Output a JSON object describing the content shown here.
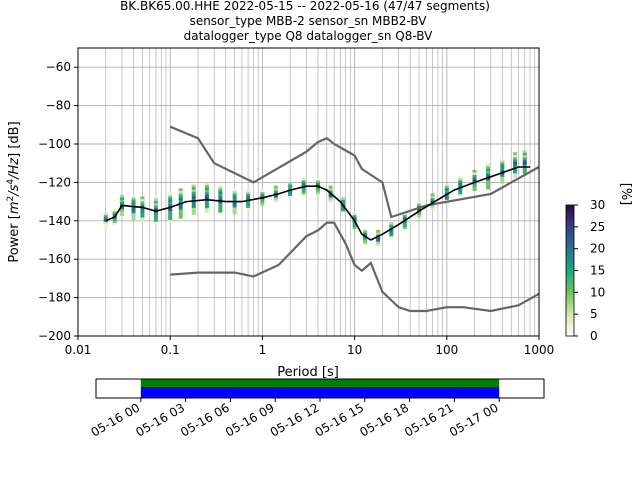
{
  "chart_data": {
    "type": "line",
    "title_lines": [
      "BK.BK65.00.HHE   2022-05-15 -- 2022-05-16  (47/47 segments)",
      "sensor_type MBB-2 sensor_sn MBB2-BV",
      "datalogger_type Q8 datalogger_sn Q8-BV"
    ],
    "xlabel": "Period [s]",
    "ylabel_prefix": "Power [",
    "ylabel_suffix": "] [dB]",
    "x_scale": "log",
    "xlim": [
      0.01,
      1000
    ],
    "ylim": [
      -200,
      -50
    ],
    "xticks": [
      {
        "value": 0.01,
        "label": "0.01"
      },
      {
        "value": 0.1,
        "label": "0.1"
      },
      {
        "value": 1,
        "label": "1"
      },
      {
        "value": 10,
        "label": "10"
      },
      {
        "value": 100,
        "label": "100"
      },
      {
        "value": 1000,
        "label": "1000"
      }
    ],
    "yticks": [
      {
        "value": -60,
        "label": "−60"
      },
      {
        "value": -80,
        "label": "−80"
      },
      {
        "value": -100,
        "label": "−100"
      },
      {
        "value": -120,
        "label": "−120"
      },
      {
        "value": -140,
        "label": "−140"
      },
      {
        "value": -160,
        "label": "−160"
      },
      {
        "value": -180,
        "label": "−180"
      },
      {
        "value": -200,
        "label": "−200"
      }
    ],
    "grid": true,
    "series": [
      {
        "color": "#666666",
        "points": [
          [
            0.1,
            -91
          ],
          [
            0.2,
            -97
          ],
          [
            0.3,
            -110
          ],
          [
            0.8,
            -120
          ],
          [
            3,
            -104
          ],
          [
            4,
            -99
          ],
          [
            5,
            -97
          ],
          [
            6,
            -100
          ],
          [
            10,
            -106
          ],
          [
            12,
            -113
          ],
          [
            20,
            -120
          ],
          [
            25,
            -138
          ],
          [
            60,
            -132
          ],
          [
            300,
            -126
          ],
          [
            1000,
            -112
          ]
        ]
      },
      {
        "color": "#666666",
        "points": [
          [
            0.1,
            -168
          ],
          [
            0.2,
            -167
          ],
          [
            0.5,
            -167
          ],
          [
            0.8,
            -169
          ],
          [
            1.5,
            -163
          ],
          [
            3,
            -148
          ],
          [
            4,
            -145
          ],
          [
            5,
            -141
          ],
          [
            6,
            -141
          ],
          [
            8,
            -152
          ],
          [
            10,
            -163
          ],
          [
            12,
            -166
          ],
          [
            15,
            -162
          ],
          [
            20,
            -177
          ],
          [
            30,
            -185
          ],
          [
            40,
            -187
          ],
          [
            60,
            -187
          ],
          [
            100,
            -185
          ],
          [
            150,
            -185
          ],
          [
            300,
            -187
          ],
          [
            600,
            -184
          ],
          [
            1000,
            -178
          ]
        ]
      },
      {
        "color": "#000000",
        "points": [
          [
            0.02,
            -140
          ],
          [
            0.025,
            -138
          ],
          [
            0.03,
            -132
          ],
          [
            0.05,
            -133
          ],
          [
            0.07,
            -135
          ],
          [
            0.1,
            -133
          ],
          [
            0.15,
            -130
          ],
          [
            0.25,
            -129
          ],
          [
            0.4,
            -130
          ],
          [
            0.6,
            -130
          ],
          [
            1,
            -128
          ],
          [
            1.5,
            -126
          ],
          [
            2,
            -124
          ],
          [
            3,
            -122
          ],
          [
            4,
            -122
          ],
          [
            5,
            -124
          ],
          [
            7,
            -130
          ],
          [
            10,
            -140
          ],
          [
            12,
            -147
          ],
          [
            15,
            -150
          ],
          [
            20,
            -147
          ],
          [
            30,
            -142
          ],
          [
            50,
            -135
          ],
          [
            80,
            -129
          ],
          [
            120,
            -124
          ],
          [
            200,
            -120
          ],
          [
            400,
            -115
          ],
          [
            600,
            -112
          ],
          [
            800,
            -112
          ]
        ]
      }
    ],
    "histogram_columns": [
      {
        "period": 0.02,
        "center": -140,
        "spread": 3
      },
      {
        "period": 0.025,
        "center": -138,
        "spread": 3
      },
      {
        "period": 0.03,
        "center": -132,
        "spread": 4
      },
      {
        "period": 0.04,
        "center": -133,
        "spread": 5
      },
      {
        "period": 0.05,
        "center": -134,
        "spread": 5
      },
      {
        "period": 0.07,
        "center": -135,
        "spread": 5
      },
      {
        "period": 0.1,
        "center": -133,
        "spread": 6
      },
      {
        "period": 0.13,
        "center": -131,
        "spread": 6
      },
      {
        "period": 0.18,
        "center": -129,
        "spread": 6
      },
      {
        "period": 0.25,
        "center": -128,
        "spread": 6
      },
      {
        "period": 0.35,
        "center": -129,
        "spread": 6
      },
      {
        "period": 0.5,
        "center": -130,
        "spread": 5
      },
      {
        "period": 0.7,
        "center": -129,
        "spread": 4
      },
      {
        "period": 1.0,
        "center": -128,
        "spread": 3
      },
      {
        "period": 1.4,
        "center": -126,
        "spread": 3
      },
      {
        "period": 2.0,
        "center": -124,
        "spread": 3
      },
      {
        "period": 2.8,
        "center": -122,
        "spread": 3
      },
      {
        "period": 4.0,
        "center": -122,
        "spread": 3
      },
      {
        "period": 5.5,
        "center": -126,
        "spread": 3
      },
      {
        "period": 7.5,
        "center": -132,
        "spread": 3
      },
      {
        "period": 10,
        "center": -140,
        "spread": 3
      },
      {
        "period": 13,
        "center": -148,
        "spread": 3
      },
      {
        "period": 18,
        "center": -149,
        "spread": 3
      },
      {
        "period": 25,
        "center": -145,
        "spread": 3
      },
      {
        "period": 35,
        "center": -140,
        "spread": 3
      },
      {
        "period": 50,
        "center": -134,
        "spread": 3
      },
      {
        "period": 70,
        "center": -130,
        "spread": 3
      },
      {
        "period": 100,
        "center": -126,
        "spread": 4
      },
      {
        "period": 140,
        "center": -122,
        "spread": 4
      },
      {
        "period": 200,
        "center": -119,
        "spread": 4
      },
      {
        "period": 280,
        "center": -117,
        "spread": 5
      },
      {
        "period": 400,
        "center": -114,
        "spread": 5
      },
      {
        "period": 550,
        "center": -111,
        "spread": 5
      },
      {
        "period": 700,
        "center": -110,
        "spread": 5
      }
    ],
    "colorbar": {
      "label": "[%]",
      "range": [
        0,
        30
      ],
      "ticks": [
        {
          "value": 0,
          "label": "0"
        },
        {
          "value": 5,
          "label": "5"
        },
        {
          "value": 10,
          "label": "10"
        },
        {
          "value": 15,
          "label": "15"
        },
        {
          "value": 20,
          "label": "20"
        },
        {
          "value": 25,
          "label": "25"
        },
        {
          "value": 30,
          "label": "30"
        }
      ]
    },
    "time_axis": {
      "range_hours": [
        -3,
        27
      ],
      "coverage_hours": [
        0,
        24
      ],
      "coverage_colors": {
        "top": "#008000",
        "bottom": "#0000ff"
      },
      "ticks": [
        {
          "value": 0,
          "label": "05-16 00"
        },
        {
          "value": 3,
          "label": "05-16 03"
        },
        {
          "value": 6,
          "label": "05-16 06"
        },
        {
          "value": 9,
          "label": "05-16 09"
        },
        {
          "value": 12,
          "label": "05-16 12"
        },
        {
          "value": 15,
          "label": "05-16 15"
        },
        {
          "value": 18,
          "label": "05-16 18"
        },
        {
          "value": 21,
          "label": "05-16 21"
        },
        {
          "value": 24,
          "label": "05-17 00"
        }
      ]
    }
  }
}
